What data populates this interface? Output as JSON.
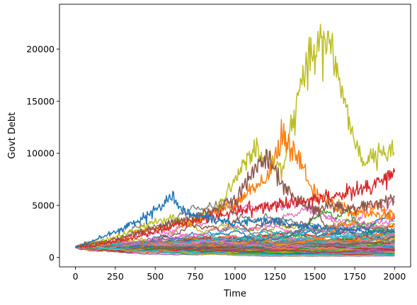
{
  "chart_data": {
    "type": "line",
    "xlabel": "Time",
    "ylabel": "Govt Debt",
    "xlim": [
      -100,
      2100
    ],
    "ylim": [
      -900,
      24300
    ],
    "grid": false,
    "legend": "none",
    "x_ticks": [
      0,
      250,
      500,
      750,
      1000,
      1250,
      1500,
      1750,
      2000
    ],
    "y_ticks": [
      0,
      5000,
      10000,
      15000,
      20000
    ],
    "colors": [
      "#1f77b4",
      "#ff7f0e",
      "#2ca02c",
      "#d62728",
      "#9467bd",
      "#8c564b",
      "#e377c2",
      "#7f7f7f",
      "#bcbd22",
      "#17becf"
    ],
    "series_count": 120,
    "series": [
      {
        "x": [
          0,
          100,
          200,
          300,
          400,
          500,
          600,
          700,
          800,
          900,
          1000,
          1100,
          1200,
          1300,
          1400,
          1500,
          1600,
          1700,
          1800,
          1900,
          2000
        ],
        "values": [
          1000,
          1300,
          1700,
          2200,
          2800,
          3400,
          3800,
          3200,
          4000,
          4800,
          7500,
          10300,
          9700,
          8500,
          15500,
          20500,
          21000,
          14000,
          9000,
          10000,
          10000
        ]
      },
      {
        "x": [
          0,
          100,
          200,
          300,
          400,
          500,
          600,
          700,
          800,
          900,
          1000,
          1100,
          1200,
          1300,
          1400,
          1500,
          1600,
          1700,
          1800,
          1900,
          2000
        ],
        "values": [
          1000,
          1200,
          1400,
          1800,
          2500,
          2800,
          3000,
          3300,
          3900,
          4500,
          5000,
          6500,
          7500,
          11500,
          9500,
          6000,
          5000,
          4500,
          4200,
          4000,
          3800
        ]
      },
      {
        "x": [
          0,
          100,
          200,
          300,
          400,
          500,
          600,
          700,
          800,
          900,
          1000,
          1100,
          1200,
          1300,
          1400,
          1500,
          1600,
          1700,
          1800,
          1900,
          2000
        ],
        "values": [
          1000,
          1300,
          1600,
          2000,
          2400,
          2800,
          3300,
          3800,
          4200,
          4800,
          5600,
          8000,
          9800,
          6800,
          5500,
          4500,
          5000,
          4700,
          4800,
          5200,
          5800
        ]
      },
      {
        "x": [
          0,
          100,
          200,
          300,
          400,
          500,
          600,
          700,
          800,
          900,
          1000,
          1100,
          1200,
          1300,
          1400,
          1500,
          1600,
          1700,
          1800,
          1900,
          2000
        ],
        "values": [
          1000,
          1100,
          1400,
          1700,
          2000,
          2500,
          3000,
          3400,
          3700,
          4000,
          4300,
          4600,
          4900,
          5100,
          5300,
          5600,
          5800,
          6200,
          6500,
          7200,
          8200
        ]
      },
      {
        "x": [
          0,
          100,
          200,
          300,
          400,
          500,
          600,
          700,
          800,
          900,
          1000,
          1100,
          1200,
          1300,
          1400,
          1500,
          1600,
          1700,
          1800,
          1900,
          2000
        ],
        "values": [
          1000,
          1500,
          2200,
          2800,
          3600,
          4500,
          5800,
          4200,
          3800,
          3500,
          3300,
          3400,
          3600,
          3300,
          3100,
          2900,
          2800,
          2700,
          2600,
          2500,
          2400
        ]
      }
    ]
  }
}
